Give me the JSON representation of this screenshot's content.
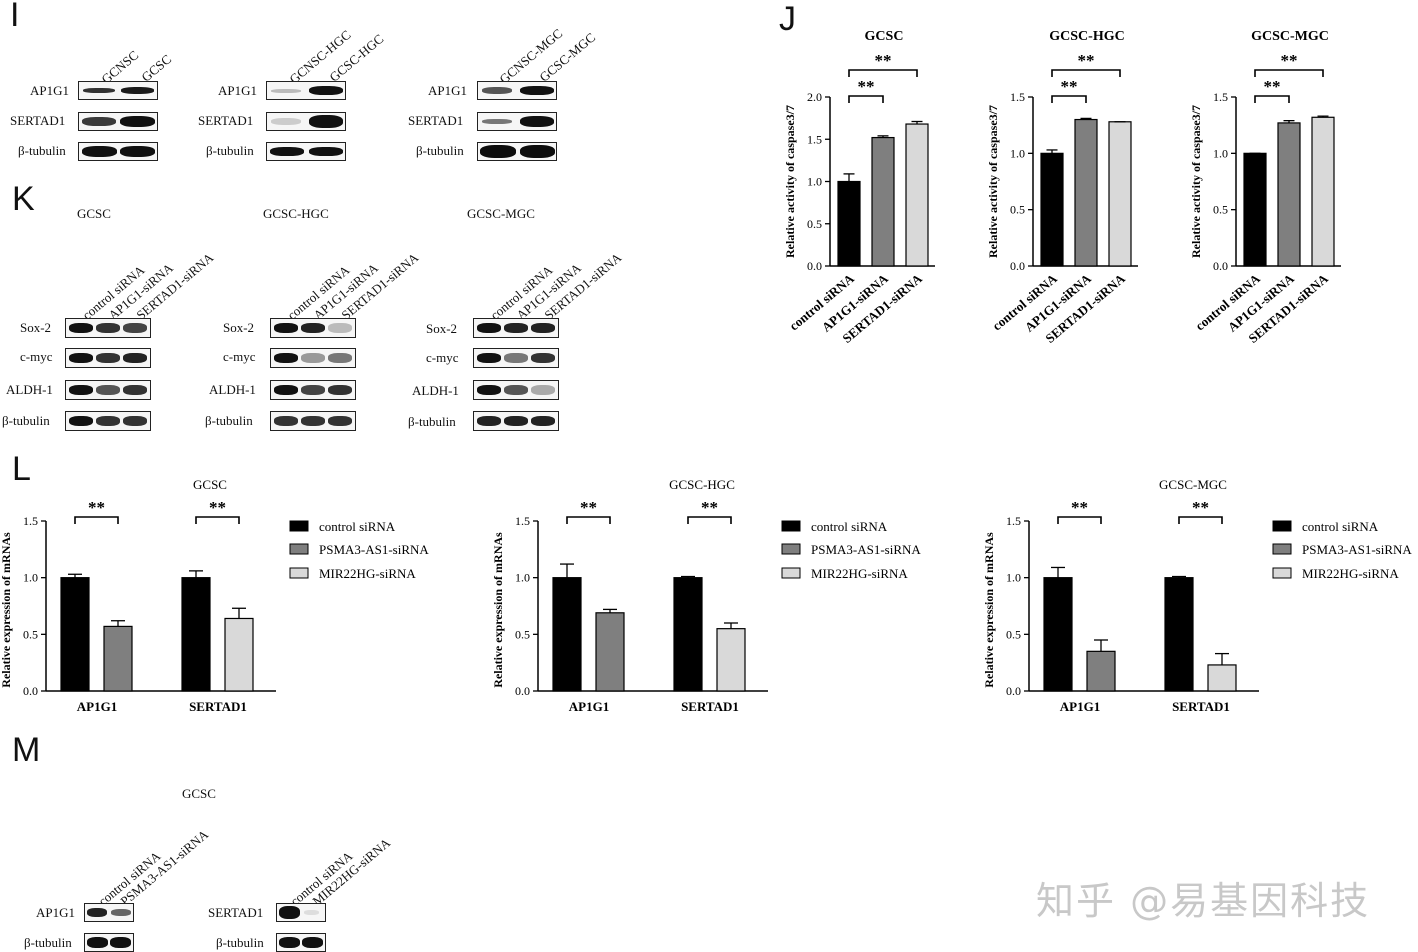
{
  "panels": {
    "I": "I",
    "J": "J",
    "K": "K",
    "L": "L",
    "M": "M"
  },
  "panel_I": {
    "groups": [
      {
        "lanes": [
          "GCNSC",
          "GCSC"
        ]
      },
      {
        "lanes": [
          "GCNSC-HGC",
          "GCSC-HGC"
        ]
      },
      {
        "lanes": [
          "GCNSC-MGC",
          "GCSC-MGC"
        ]
      }
    ],
    "rows": [
      "AP1G1",
      "SERTAD1",
      "β-tubulin"
    ]
  },
  "panel_K": {
    "groups": [
      {
        "title": "GCSC",
        "lanes": [
          "control siRNA",
          "AP1G1-siRNA",
          "SERTAD1-siRNA"
        ]
      },
      {
        "title": "GCSC-HGC",
        "lanes": [
          "control siRNA",
          "AP1G1-siRNA",
          "SERTAD1-siRNA"
        ]
      },
      {
        "title": "GCSC-MGC",
        "lanes": [
          "control siRNA",
          "AP1G1-siRNA",
          "SERTAD1-siRNA"
        ]
      }
    ],
    "rows": [
      "Sox-2",
      "c-myc",
      "ALDH-1",
      "β-tubulin"
    ]
  },
  "panel_M": {
    "title": "GCSC",
    "blots": [
      {
        "lanes": [
          "control siRNA",
          "PSMA3-AS1-siRNA"
        ],
        "rows": [
          "AP1G1",
          "β-tubulin"
        ]
      },
      {
        "lanes": [
          "control siRNA",
          "MIR22HG-siRNA"
        ],
        "rows": [
          "SERTAD1",
          "β-tubulin"
        ]
      }
    ]
  },
  "colors": {
    "black": "#000000",
    "dark_gray": "#7f7f7f",
    "light_gray": "#d9d9d9"
  },
  "chart_data": [
    {
      "type": "bar",
      "panel": "J",
      "title": "GCSC",
      "ylabel": "Relative activity of caspase3/7",
      "ylim": [
        0,
        2.0
      ],
      "yticks": [
        "0.0",
        "0.5",
        "1.0",
        "1.5",
        "2.0"
      ],
      "categories": [
        "control siRNA",
        "AP1G1-siRNA",
        "SERTAD1-siRNA"
      ],
      "values": [
        1.0,
        1.52,
        1.68
      ],
      "errors": [
        0.09,
        0.02,
        0.03
      ],
      "significance": [
        "**",
        "**"
      ]
    },
    {
      "type": "bar",
      "panel": "J",
      "title": "GCSC-HGC",
      "ylabel": "Relative activity of caspase3/7",
      "ylim": [
        0,
        1.5
      ],
      "yticks": [
        "0.0",
        "0.5",
        "1.0",
        "1.5"
      ],
      "categories": [
        "control siRNA",
        "AP1G1-siRNA",
        "SERTAD1-siRNA"
      ],
      "values": [
        1.0,
        1.3,
        1.28
      ],
      "errors": [
        0.03,
        0.01,
        0.0
      ],
      "significance": [
        "**",
        "**"
      ]
    },
    {
      "type": "bar",
      "panel": "J",
      "title": "GCSC-MGC",
      "ylabel": "Relative activity of caspase3/7",
      "ylim": [
        0,
        1.5
      ],
      "yticks": [
        "0.0",
        "0.5",
        "1.0",
        "1.5"
      ],
      "categories": [
        "control siRNA",
        "AP1G1-siRNA",
        "SERTAD1-siRNA"
      ],
      "values": [
        1.0,
        1.27,
        1.32
      ],
      "errors": [
        0.0,
        0.02,
        0.01
      ],
      "significance": [
        "**",
        "**"
      ]
    },
    {
      "type": "bar",
      "panel": "L",
      "title": "GCSC",
      "ylabel": "Relative expression of mRNAs",
      "ylim": [
        0,
        1.5
      ],
      "yticks": [
        "0.0",
        "0.5",
        "1.0",
        "1.5"
      ],
      "categories": [
        "AP1G1",
        "SERTAD1"
      ],
      "series": [
        {
          "name": "control siRNA",
          "values": [
            1.0,
            1.0
          ],
          "errors": [
            0.03,
            0.06
          ]
        },
        {
          "name": "PSMA3-AS1-siRNA",
          "values": [
            0.57,
            null
          ],
          "errors": [
            0.05,
            null
          ]
        },
        {
          "name": "MIR22HG-siRNA",
          "values": [
            null,
            0.64
          ],
          "errors": [
            null,
            0.09
          ]
        }
      ],
      "significance": [
        "**",
        "**"
      ]
    },
    {
      "type": "bar",
      "panel": "L",
      "title": "GCSC-HGC",
      "ylabel": "Relative expression of mRNAs",
      "ylim": [
        0,
        1.5
      ],
      "yticks": [
        "0.0",
        "0.5",
        "1.0",
        "1.5"
      ],
      "categories": [
        "AP1G1",
        "SERTAD1"
      ],
      "series": [
        {
          "name": "control siRNA",
          "values": [
            1.0,
            1.0
          ],
          "errors": [
            0.12,
            0.01
          ]
        },
        {
          "name": "PSMA3-AS1-siRNA",
          "values": [
            0.69,
            null
          ],
          "errors": [
            0.03,
            null
          ]
        },
        {
          "name": "MIR22HG-siRNA",
          "values": [
            null,
            0.55
          ],
          "errors": [
            null,
            0.05
          ]
        }
      ],
      "significance": [
        "**",
        "**"
      ]
    },
    {
      "type": "bar",
      "panel": "L",
      "title": "GCSC-MGC",
      "ylabel": "Relative expression of mRNAs",
      "ylim": [
        0,
        1.5
      ],
      "yticks": [
        "0.0",
        "0.5",
        "1.0",
        "1.5"
      ],
      "categories": [
        "AP1G1",
        "SERTAD1"
      ],
      "series": [
        {
          "name": "control siRNA",
          "values": [
            1.0,
            1.0
          ],
          "errors": [
            0.09,
            0.01
          ]
        },
        {
          "name": "PSMA3-AS1-siRNA",
          "values": [
            0.35,
            null
          ],
          "errors": [
            0.1,
            null
          ]
        },
        {
          "name": "MIR22HG-siRNA",
          "values": [
            null,
            0.23
          ],
          "errors": [
            null,
            0.1
          ]
        }
      ],
      "significance": [
        "**",
        "**"
      ]
    }
  ],
  "watermark": "知乎 @易基因科技"
}
